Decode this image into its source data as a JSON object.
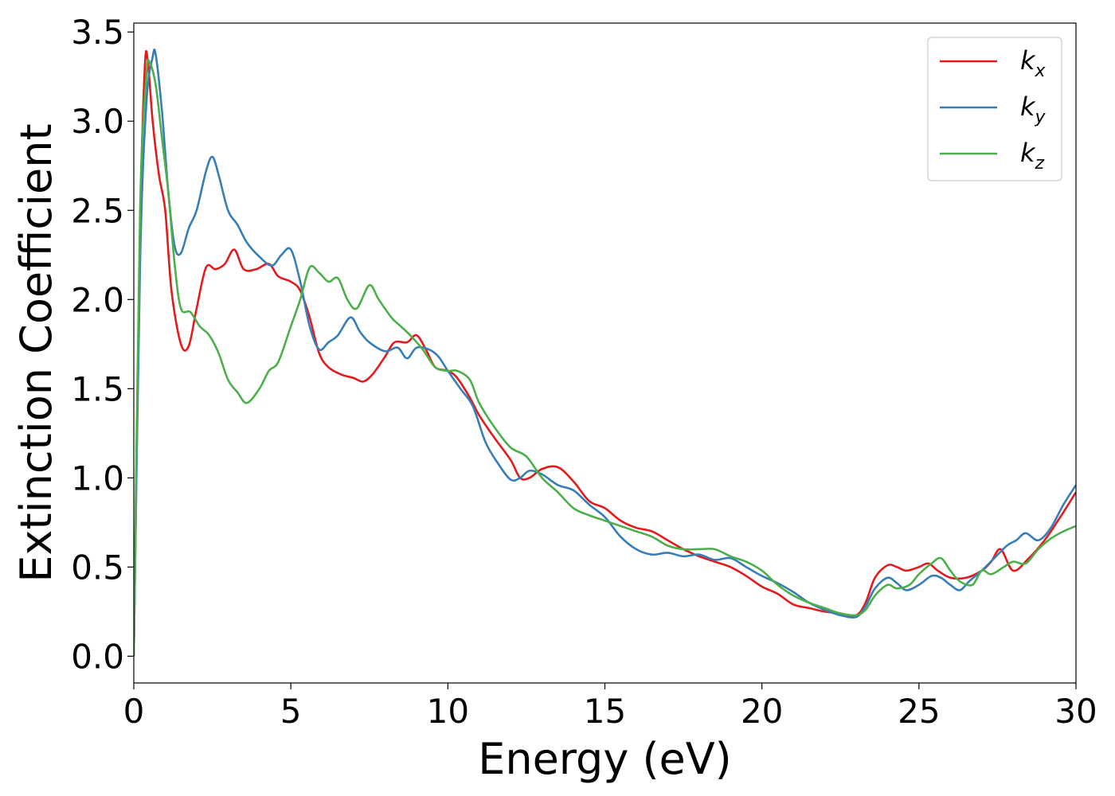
{
  "chart_data": {
    "type": "line",
    "title": "",
    "xlabel": "Energy (eV)",
    "ylabel": "Extinction Coefficient",
    "xlim": [
      0,
      30
    ],
    "ylim": [
      -0.15,
      3.55
    ],
    "xticks": [
      0,
      5,
      10,
      15,
      20,
      25,
      30
    ],
    "xtick_labels": [
      "0",
      "5",
      "10",
      "15",
      "20",
      "25",
      "30"
    ],
    "yticks": [
      0.0,
      0.5,
      1.0,
      1.5,
      2.0,
      2.5,
      3.0,
      3.5
    ],
    "ytick_labels": [
      "0.0",
      "0.5",
      "1.0",
      "1.5",
      "2.0",
      "2.5",
      "3.0",
      "3.5"
    ],
    "grid": false,
    "legend": {
      "position": "top-right"
    },
    "series": [
      {
        "name": "k",
        "name_sub": "x",
        "color": "#e41a1c",
        "x": [
          0,
          0.2,
          0.35,
          0.45,
          0.6,
          0.8,
          1.0,
          1.2,
          1.5,
          1.75,
          2.0,
          2.3,
          2.6,
          2.9,
          3.2,
          3.5,
          3.9,
          4.3,
          4.6,
          5.0,
          5.3,
          5.6,
          5.9,
          6.2,
          6.6,
          7.0,
          7.3,
          7.6,
          8.0,
          8.3,
          8.7,
          9.0,
          9.3,
          9.6,
          10.0,
          10.3,
          10.7,
          11.0,
          11.5,
          12.0,
          12.3,
          12.6,
          13.0,
          13.5,
          14.0,
          14.5,
          15.0,
          15.5,
          16.0,
          16.5,
          17.0,
          17.5,
          18.0,
          18.5,
          19.0,
          19.5,
          20.0,
          20.5,
          21.0,
          21.5,
          22.0,
          22.5,
          23.0,
          23.3,
          23.6,
          24.0,
          24.3,
          24.6,
          25.0,
          25.3,
          25.6,
          26.0,
          26.5,
          27.0,
          27.3,
          27.6,
          28.0,
          28.5,
          29.0,
          29.5,
          30.0
        ],
        "y": [
          0.0,
          2.4,
          3.3,
          3.33,
          3.0,
          2.7,
          2.5,
          2.05,
          1.75,
          1.74,
          1.95,
          2.18,
          2.17,
          2.2,
          2.28,
          2.17,
          2.17,
          2.2,
          2.13,
          2.1,
          2.05,
          1.9,
          1.7,
          1.62,
          1.58,
          1.56,
          1.54,
          1.58,
          1.68,
          1.76,
          1.76,
          1.8,
          1.72,
          1.62,
          1.6,
          1.56,
          1.45,
          1.35,
          1.22,
          1.1,
          1.0,
          1.0,
          1.05,
          1.06,
          0.98,
          0.87,
          0.83,
          0.76,
          0.72,
          0.7,
          0.65,
          0.6,
          0.56,
          0.53,
          0.5,
          0.45,
          0.39,
          0.35,
          0.29,
          0.27,
          0.25,
          0.24,
          0.23,
          0.3,
          0.44,
          0.51,
          0.5,
          0.48,
          0.5,
          0.52,
          0.48,
          0.44,
          0.44,
          0.48,
          0.53,
          0.6,
          0.48,
          0.55,
          0.65,
          0.78,
          0.92
        ]
      },
      {
        "name": "k",
        "name_sub": "y",
        "color": "#377eb8",
        "x": [
          0,
          0.2,
          0.4,
          0.6,
          0.7,
          0.9,
          1.1,
          1.3,
          1.5,
          1.75,
          2.0,
          2.3,
          2.5,
          2.7,
          3.0,
          3.3,
          3.6,
          4.0,
          4.4,
          4.7,
          5.0,
          5.3,
          5.6,
          5.9,
          6.2,
          6.5,
          6.9,
          7.2,
          7.5,
          8.0,
          8.4,
          8.7,
          9.0,
          9.4,
          9.7,
          10.0,
          10.4,
          10.8,
          11.2,
          11.6,
          12.0,
          12.3,
          12.6,
          13.0,
          13.5,
          14.0,
          14.5,
          15.0,
          15.5,
          16.0,
          16.5,
          17.0,
          17.5,
          18.0,
          18.5,
          19.0,
          19.5,
          20.0,
          20.5,
          21.0,
          21.5,
          22.0,
          22.5,
          23.0,
          23.3,
          23.6,
          24.0,
          24.3,
          24.6,
          25.0,
          25.4,
          25.7,
          26.0,
          26.3,
          26.6,
          27.0,
          27.4,
          27.8,
          28.1,
          28.4,
          28.8,
          29.2,
          29.6,
          30.0
        ],
        "y": [
          0.0,
          2.2,
          3.1,
          3.36,
          3.37,
          3.05,
          2.6,
          2.3,
          2.26,
          2.4,
          2.5,
          2.72,
          2.8,
          2.7,
          2.5,
          2.42,
          2.32,
          2.24,
          2.19,
          2.25,
          2.28,
          2.1,
          1.85,
          1.72,
          1.76,
          1.8,
          1.9,
          1.82,
          1.76,
          1.71,
          1.73,
          1.67,
          1.73,
          1.72,
          1.68,
          1.6,
          1.5,
          1.4,
          1.2,
          1.08,
          0.99,
          1.0,
          1.04,
          1.02,
          0.96,
          0.93,
          0.85,
          0.78,
          0.67,
          0.6,
          0.57,
          0.58,
          0.56,
          0.57,
          0.54,
          0.55,
          0.5,
          0.45,
          0.41,
          0.36,
          0.3,
          0.26,
          0.23,
          0.22,
          0.28,
          0.38,
          0.44,
          0.41,
          0.37,
          0.4,
          0.45,
          0.44,
          0.4,
          0.37,
          0.42,
          0.48,
          0.55,
          0.62,
          0.65,
          0.69,
          0.65,
          0.72,
          0.85,
          0.96
        ]
      },
      {
        "name": "k",
        "name_sub": "z",
        "color": "#4daf4a",
        "x": [
          0,
          0.2,
          0.4,
          0.5,
          0.7,
          0.9,
          1.1,
          1.3,
          1.5,
          1.8,
          2.1,
          2.4,
          2.7,
          3.0,
          3.3,
          3.6,
          4.0,
          4.3,
          4.6,
          5.0,
          5.3,
          5.6,
          5.9,
          6.2,
          6.5,
          6.8,
          7.1,
          7.5,
          7.8,
          8.2,
          8.5,
          8.8,
          9.2,
          9.6,
          10.0,
          10.3,
          10.7,
          11.0,
          11.5,
          12.0,
          12.5,
          13.0,
          13.5,
          14.0,
          14.5,
          15.0,
          15.5,
          16.0,
          16.5,
          17.0,
          17.5,
          18.0,
          18.5,
          19.0,
          19.5,
          20.0,
          20.5,
          21.0,
          21.5,
          22.0,
          22.5,
          23.0,
          23.3,
          23.6,
          24.0,
          24.3,
          24.7,
          25.0,
          25.4,
          25.7,
          26.0,
          26.3,
          26.7,
          27.0,
          27.3,
          27.7,
          28.0,
          28.4,
          28.8,
          29.2,
          29.6,
          30.0
        ],
        "y": [
          0.0,
          2.5,
          3.25,
          3.33,
          3.2,
          2.9,
          2.6,
          2.2,
          1.95,
          1.93,
          1.85,
          1.8,
          1.7,
          1.55,
          1.48,
          1.42,
          1.5,
          1.6,
          1.65,
          1.85,
          2.0,
          2.18,
          2.15,
          2.1,
          2.12,
          2.0,
          1.95,
          2.08,
          2.0,
          1.9,
          1.85,
          1.8,
          1.72,
          1.62,
          1.6,
          1.6,
          1.55,
          1.42,
          1.28,
          1.17,
          1.12,
          1.0,
          0.92,
          0.83,
          0.79,
          0.76,
          0.73,
          0.7,
          0.67,
          0.62,
          0.6,
          0.6,
          0.6,
          0.56,
          0.53,
          0.48,
          0.4,
          0.34,
          0.3,
          0.27,
          0.24,
          0.23,
          0.26,
          0.34,
          0.4,
          0.38,
          0.4,
          0.46,
          0.52,
          0.55,
          0.48,
          0.42,
          0.4,
          0.48,
          0.46,
          0.5,
          0.53,
          0.52,
          0.6,
          0.66,
          0.7,
          0.73
        ]
      }
    ]
  }
}
